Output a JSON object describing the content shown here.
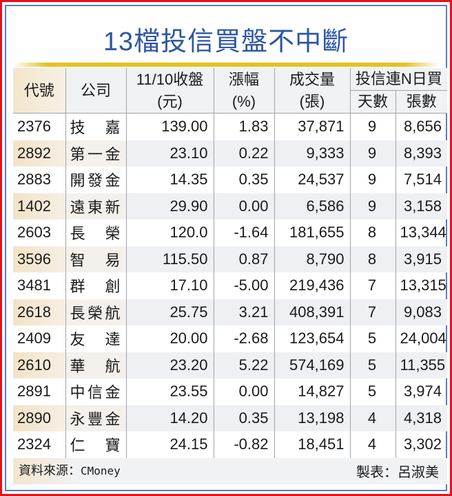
{
  "title": "13檔投信買盤不中斷",
  "colors": {
    "title": "#2d56a3",
    "outer_border": "#e8101a",
    "frame_border": "#5b7fb8",
    "gold_bar": "#e7c021",
    "code_col_bg": "#f2e3c8",
    "alt_row_bg": "#eef0f3"
  },
  "table": {
    "headers": {
      "code": "代號",
      "company": "公司",
      "close_line1": "11/10收盤",
      "close_line2": "(元)",
      "change_line1": "漲幅",
      "change_line2": "(%)",
      "volume_line1": "成交量",
      "volume_line2": "(張)",
      "trust_group": "投信連N日買",
      "trust_days": "天數",
      "trust_lots": "張數"
    },
    "rows": [
      {
        "code": "2376",
        "company": "技嘉",
        "close": "139.00",
        "change": "1.83",
        "volume": "37,871",
        "days": "9",
        "lots": "8,656"
      },
      {
        "code": "2892",
        "company": "第一金",
        "close": "23.10",
        "change": "0.22",
        "volume": "9,333",
        "days": "9",
        "lots": "8,393"
      },
      {
        "code": "2883",
        "company": "開發金",
        "close": "14.35",
        "change": "0.35",
        "volume": "24,537",
        "days": "9",
        "lots": "7,514"
      },
      {
        "code": "1402",
        "company": "遠東新",
        "close": "29.90",
        "change": "0.00",
        "volume": "6,586",
        "days": "9",
        "lots": "3,158"
      },
      {
        "code": "2603",
        "company": "長榮",
        "close": "120.0",
        "change": "-1.64",
        "volume": "181,655",
        "days": "8",
        "lots": "13,344"
      },
      {
        "code": "3596",
        "company": "智易",
        "close": "115.50",
        "change": "0.87",
        "volume": "8,790",
        "days": "8",
        "lots": "3,915"
      },
      {
        "code": "3481",
        "company": "群創",
        "close": "17.10",
        "change": "-5.00",
        "volume": "219,436",
        "days": "7",
        "lots": "13,315"
      },
      {
        "code": "2618",
        "company": "長榮航",
        "close": "25.75",
        "change": "3.21",
        "volume": "408,391",
        "days": "7",
        "lots": "9,083"
      },
      {
        "code": "2409",
        "company": "友達",
        "close": "20.00",
        "change": "-2.68",
        "volume": "123,654",
        "days": "5",
        "lots": "24,004"
      },
      {
        "code": "2610",
        "company": "華航",
        "close": "23.20",
        "change": "5.22",
        "volume": "574,169",
        "days": "5",
        "lots": "11,355"
      },
      {
        "code": "2891",
        "company": "中信金",
        "close": "23.55",
        "change": "0.00",
        "volume": "14,827",
        "days": "5",
        "lots": "3,974"
      },
      {
        "code": "2890",
        "company": "永豐金",
        "close": "14.20",
        "change": "0.35",
        "volume": "13,198",
        "days": "4",
        "lots": "4,318"
      },
      {
        "code": "2324",
        "company": "仁寶",
        "close": "24.15",
        "change": "-0.82",
        "volume": "18,451",
        "days": "4",
        "lots": "3,302"
      }
    ]
  },
  "footer": {
    "source_label": "資料來源：",
    "source_name": "CMoney",
    "maker": "製表：呂淑美"
  }
}
